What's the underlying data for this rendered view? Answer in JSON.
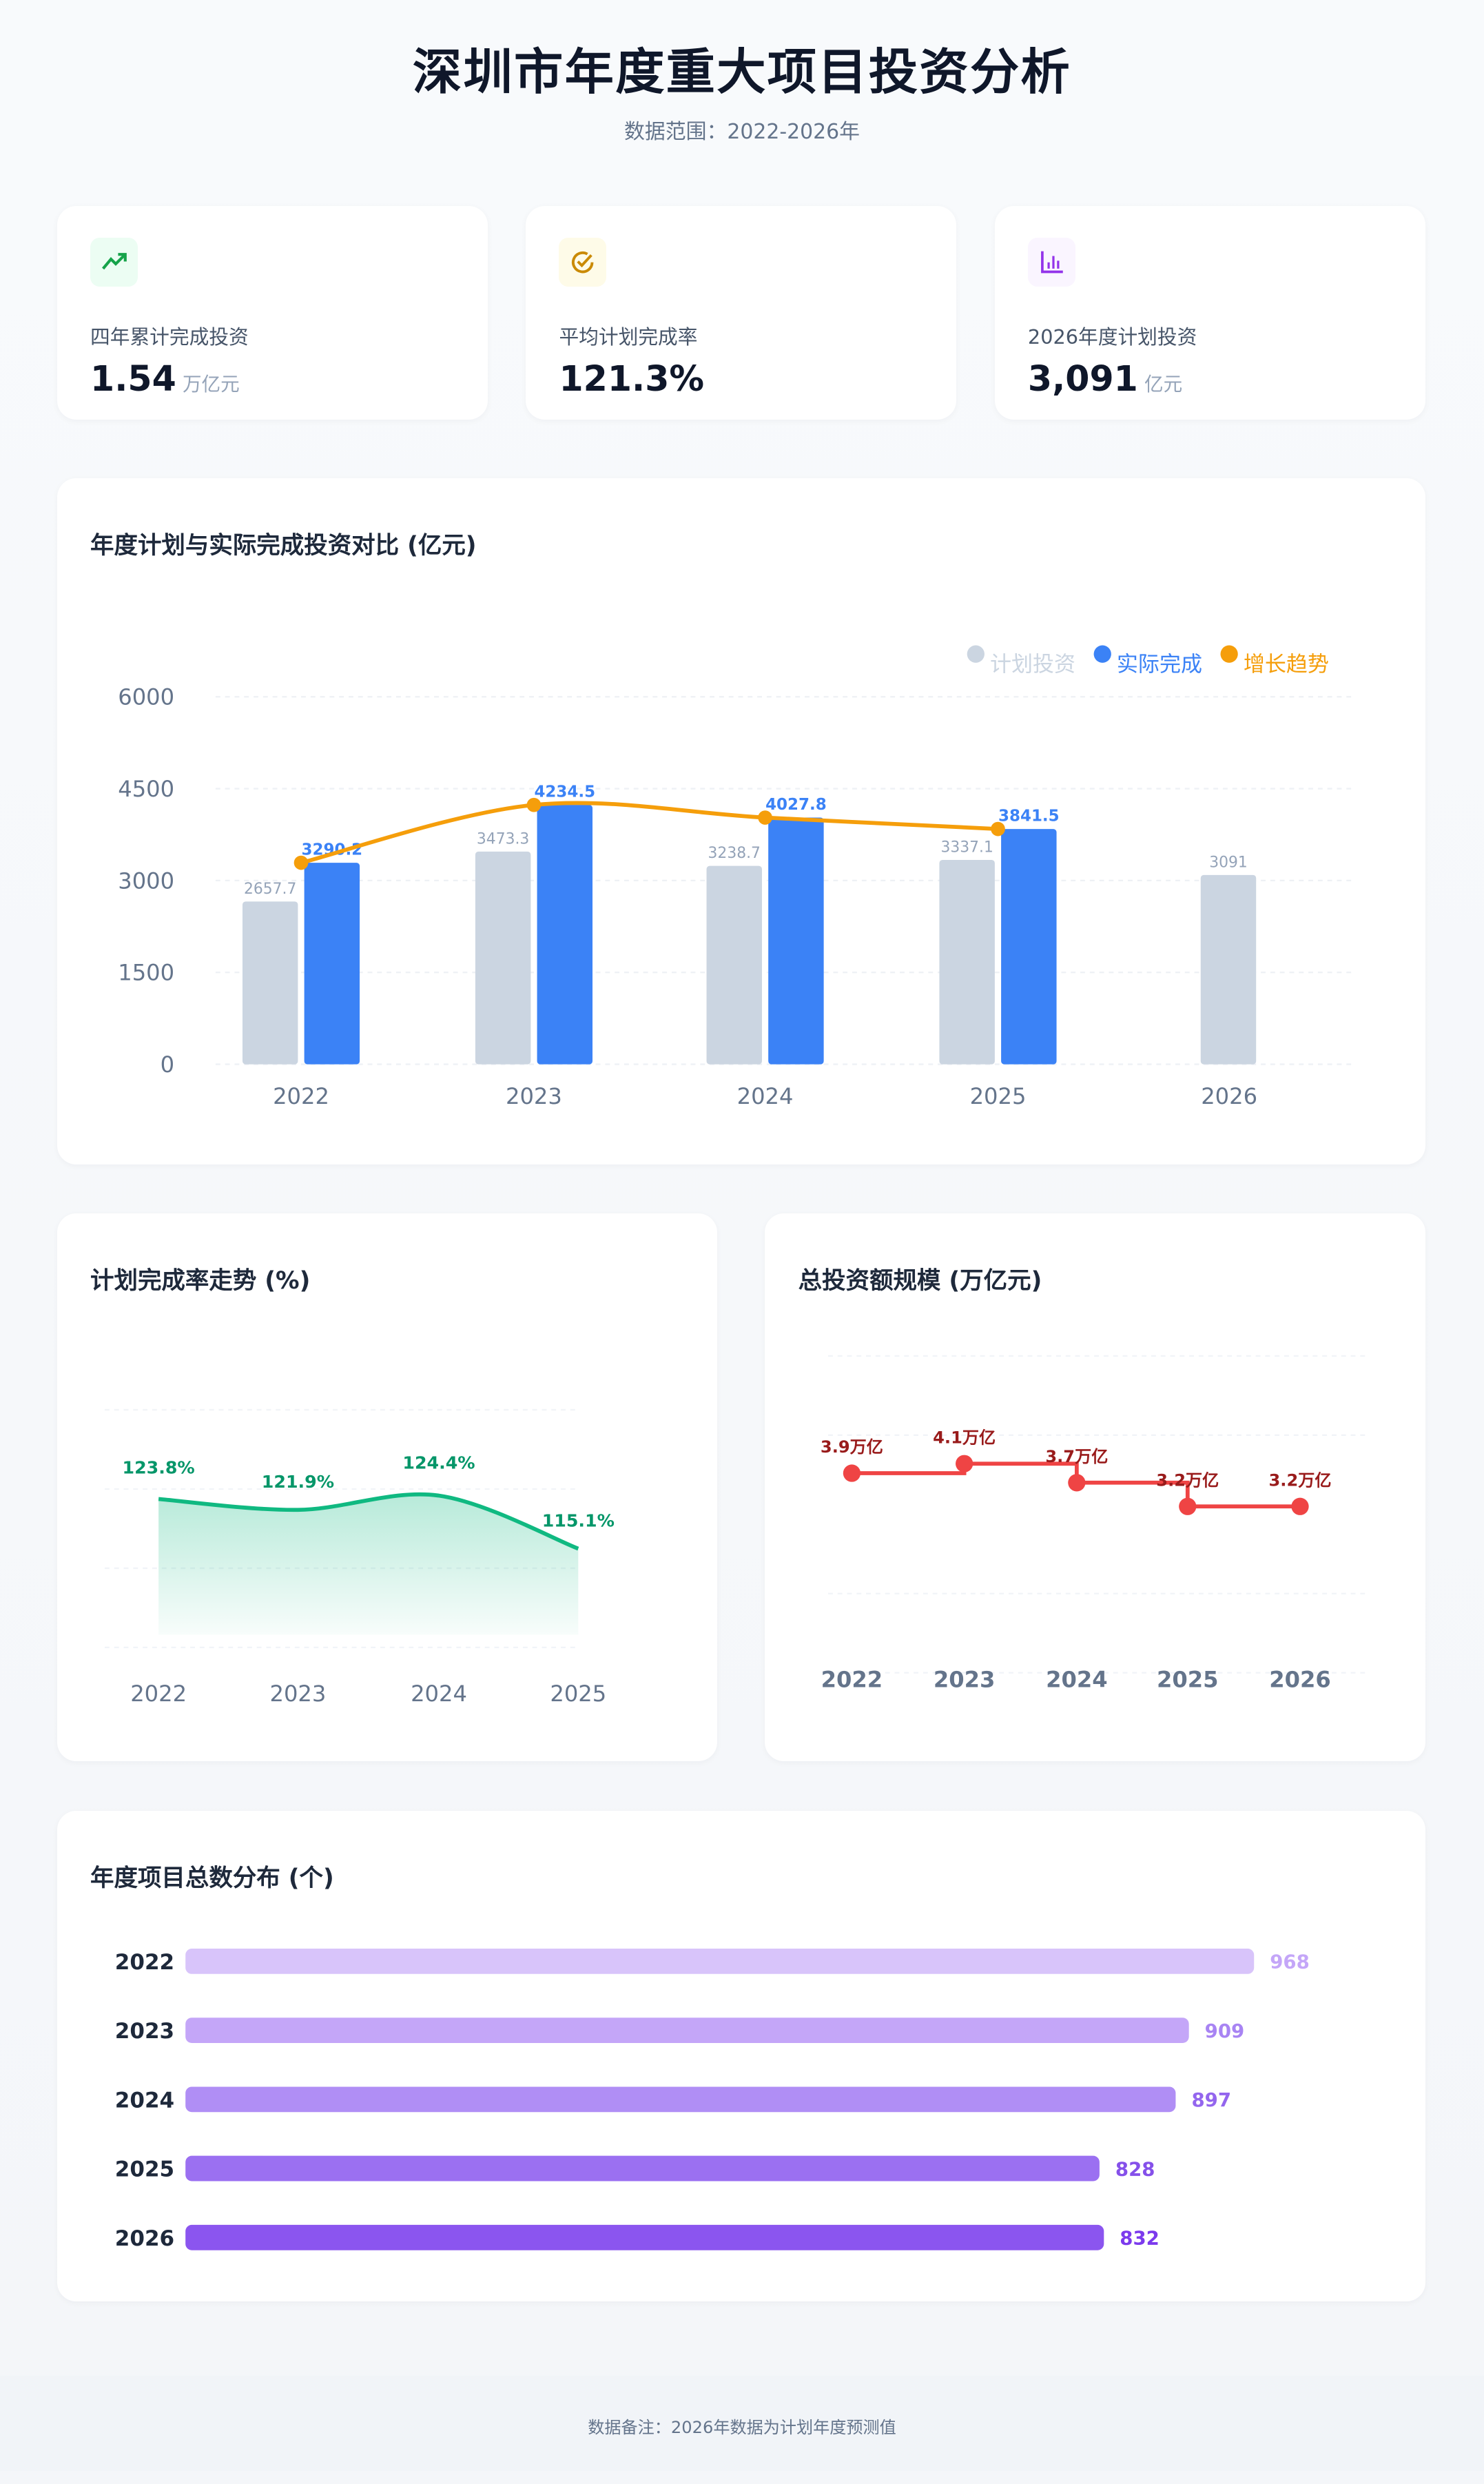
{
  "header": {
    "title": "深圳市年度重大项目投资分析",
    "subtitle": "数据范围：2022-2026年"
  },
  "kpis": [
    {
      "icon": "trending-up-icon",
      "color": "#16a34a",
      "bg": "#ecfdf3",
      "label": "四年累计完成投资",
      "value": "1.54",
      "unit": "万亿元"
    },
    {
      "icon": "check-circle-icon",
      "color": "#ca8a04",
      "bg": "#fefbe8",
      "label": "平均计划完成率",
      "value": "121.3%",
      "unit": ""
    },
    {
      "icon": "bar-chart-icon",
      "color": "#9333ea",
      "bg": "#faf5ff",
      "label": "2026年度计划投资",
      "value": "3,091",
      "unit": "亿元"
    }
  ],
  "chart_data": [
    {
      "type": "bar",
      "title": "年度计划与实际完成投资对比 (亿元)",
      "categories": [
        "2022",
        "2023",
        "2024",
        "2025",
        "2026"
      ],
      "ylim": [
        0,
        6000
      ],
      "yticks": [
        "0",
        "1500",
        "3000",
        "4500",
        "6000"
      ],
      "grid": true,
      "legend_position": "top-right",
      "series": [
        {
          "name": "计划投资",
          "type": "bar",
          "color": "#cbd5e1",
          "label_color": "#94a3b8",
          "values": [
            2657.7,
            3473.3,
            3238.7,
            3337.1,
            3091
          ],
          "labels": [
            "2657.7",
            "3473.3",
            "3238.7",
            "3337.1",
            "3091"
          ]
        },
        {
          "name": "实际完成",
          "type": "bar",
          "color": "#3b82f6",
          "label_color": "#3b82f6",
          "values": [
            3290.2,
            4234.5,
            4027.8,
            3841.5,
            null
          ],
          "labels": [
            "3290.2",
            "4234.5",
            "4027.8",
            "3841.5",
            ""
          ]
        },
        {
          "name": "增长趋势",
          "type": "line",
          "color": "#f59e0b",
          "values": [
            3290.2,
            4234.5,
            4027.8,
            3841.5,
            null
          ]
        }
      ]
    },
    {
      "type": "area",
      "title": "计划完成率走势 (%)",
      "categories": [
        "2022",
        "2023",
        "2024",
        "2025"
      ],
      "values": [
        123.8,
        121.9,
        124.4,
        115.1
      ],
      "labels": [
        "123.8%",
        "121.9%",
        "124.4%",
        "115.1%"
      ],
      "ylim": [
        100,
        130
      ],
      "color": "#10b981",
      "grid": true
    },
    {
      "type": "line",
      "step": true,
      "title": "总投资额规模 (万亿元)",
      "categories": [
        "2022",
        "2023",
        "2024",
        "2025",
        "2026"
      ],
      "values": [
        3.9,
        4.1,
        3.7,
        3.2,
        3.2
      ],
      "labels": [
        "3.9万亿",
        "4.1万亿",
        "3.7万亿",
        "3.2万亿",
        "3.2万亿"
      ],
      "ylim": [
        2.5,
        4.5
      ],
      "color": "#ef4444",
      "label_color": "#991b1b",
      "grid": true
    },
    {
      "type": "bar",
      "orientation": "horizontal",
      "title": "年度项目总数分布 (个)",
      "categories": [
        "2022",
        "2023",
        "2024",
        "2025",
        "2026"
      ],
      "values": [
        968,
        909,
        897,
        828,
        832
      ],
      "labels": [
        "968",
        "909",
        "897",
        "828",
        "832"
      ],
      "colors": [
        "#d8c4fa",
        "#c4a6f8",
        "#b08ef5",
        "#9b70f1",
        "#8b55ef"
      ],
      "label_colors": [
        "#c4a6f8",
        "#a884f3",
        "#9466ee",
        "#8550ea",
        "#7c3aed"
      ],
      "xlim": [
        0,
        1000
      ]
    }
  ],
  "footer": {
    "note": "数据备注：2026年数据为计划年度预测值"
  }
}
